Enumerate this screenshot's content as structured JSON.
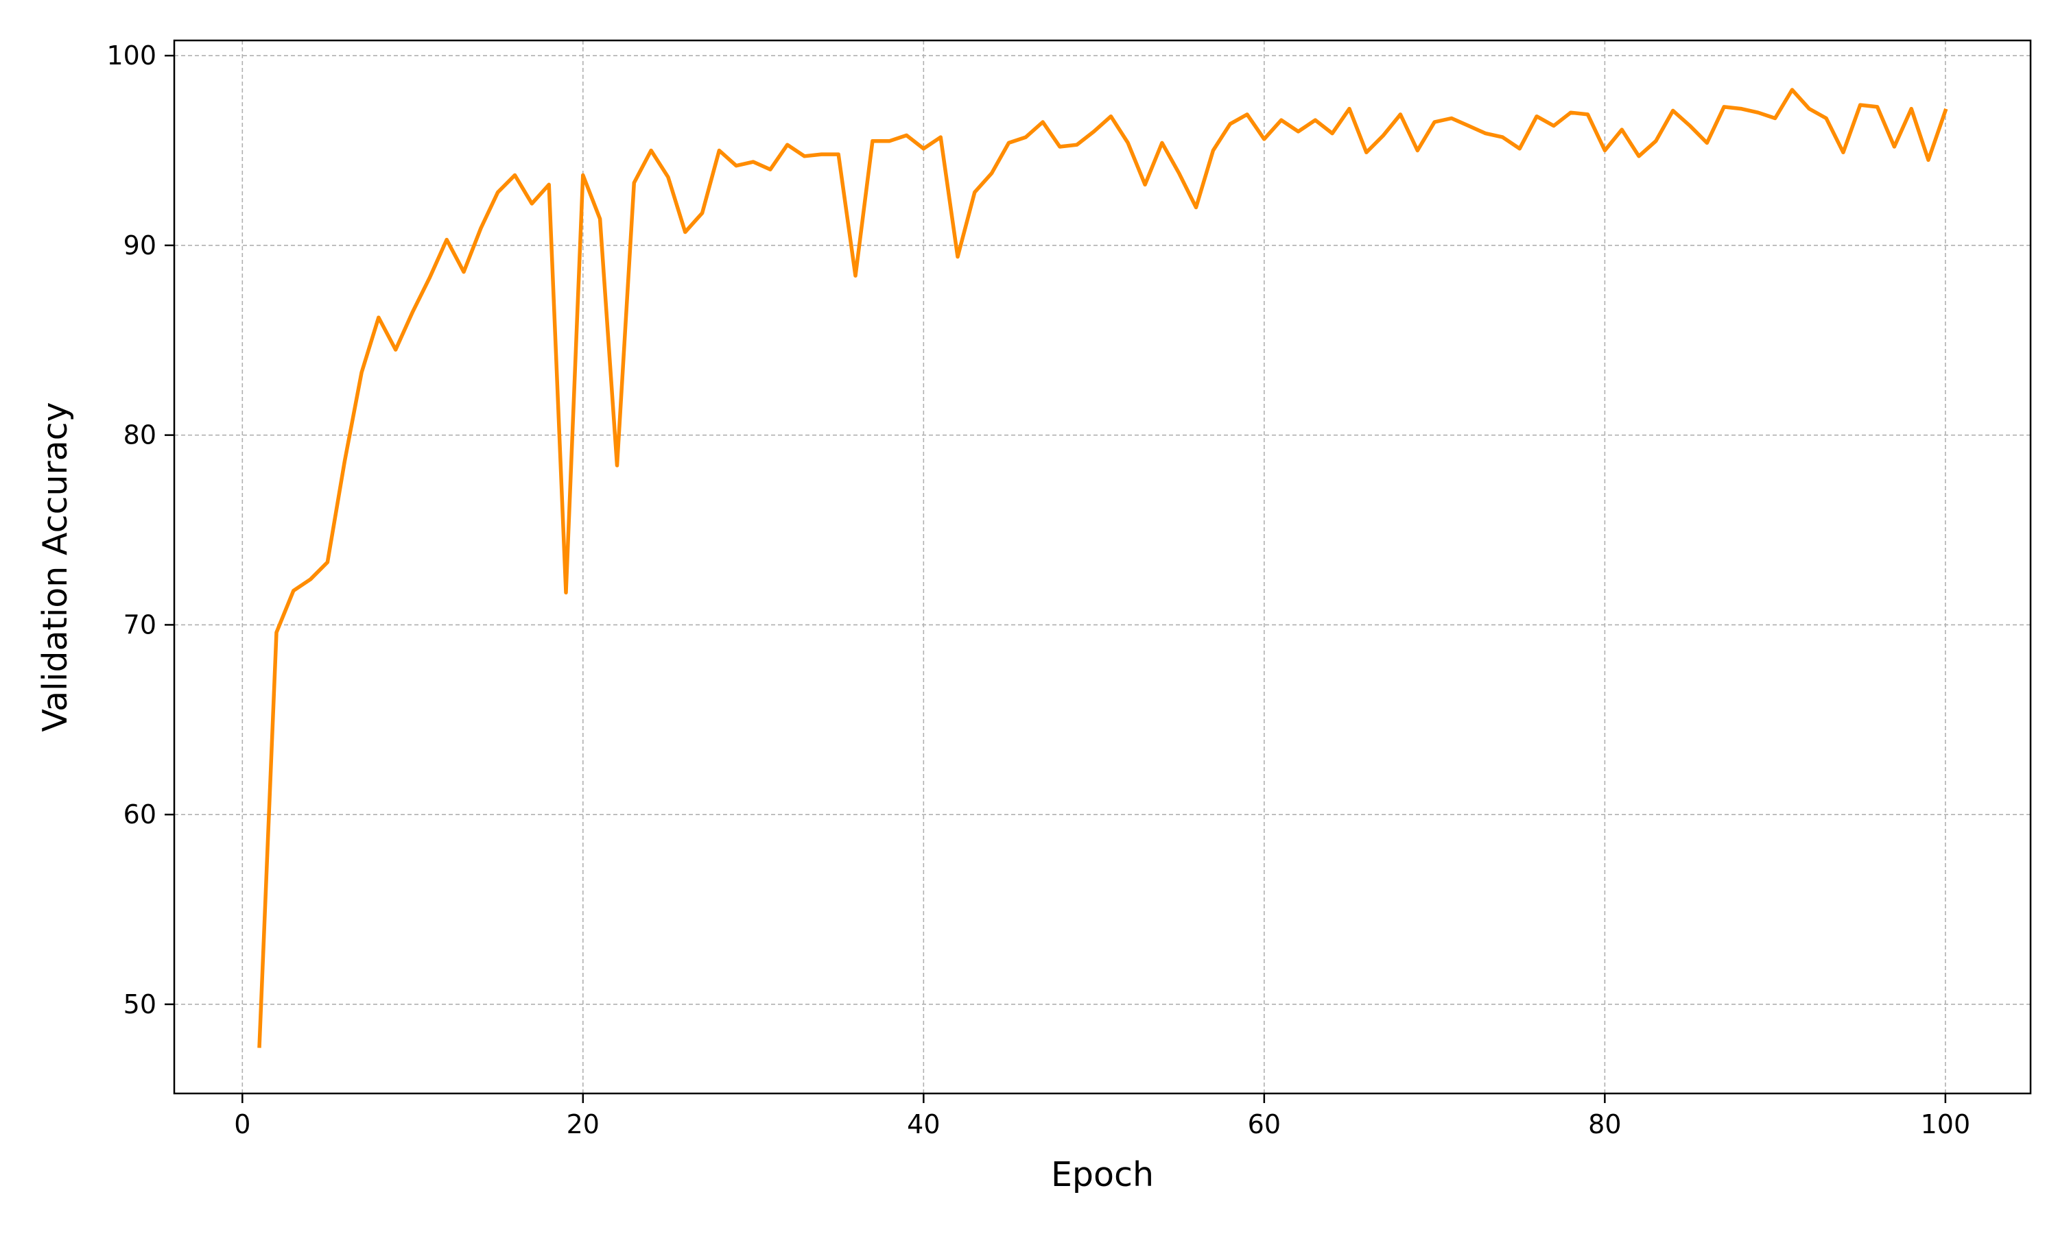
{
  "chart_data": {
    "type": "line",
    "title": "",
    "xlabel": "Epoch",
    "ylabel": "Validation Accuracy",
    "xlim": [
      -4,
      105
    ],
    "ylim": [
      45.3,
      100.8
    ],
    "xticks": [
      0,
      20,
      40,
      60,
      80,
      100
    ],
    "yticks": [
      50,
      60,
      70,
      80,
      90,
      100
    ],
    "xtick_labels": [
      "0",
      "20",
      "40",
      "60",
      "80",
      "100"
    ],
    "ytick_labels": [
      "50",
      "60",
      "70",
      "80",
      "90",
      "100"
    ],
    "grid": true,
    "legend": "none",
    "series": [
      {
        "color": "#ff8c00",
        "x": [
          1,
          2,
          3,
          4,
          5,
          6,
          7,
          8,
          9,
          10,
          11,
          12,
          13,
          14,
          15,
          16,
          17,
          18,
          19,
          20,
          21,
          22,
          23,
          24,
          25,
          26,
          27,
          28,
          29,
          30,
          31,
          32,
          33,
          34,
          35,
          36,
          37,
          38,
          39,
          40,
          41,
          42,
          43,
          44,
          45,
          46,
          47,
          48,
          49,
          50,
          51,
          52,
          53,
          54,
          55,
          56,
          57,
          58,
          59,
          60,
          61,
          62,
          63,
          64,
          65,
          66,
          67,
          68,
          69,
          70,
          71,
          72,
          73,
          74,
          75,
          76,
          77,
          78,
          79,
          80,
          81,
          82,
          83,
          84,
          85,
          86,
          87,
          88,
          89,
          90,
          91,
          92,
          93,
          94,
          95,
          96,
          97,
          98,
          99,
          100
        ],
        "values": [
          47.8,
          69.6,
          71.8,
          72.4,
          73.3,
          78.6,
          83.3,
          86.2,
          84.5,
          86.5,
          88.3,
          90.3,
          88.6,
          90.9,
          92.8,
          93.7,
          92.2,
          93.2,
          71.7,
          93.7,
          91.4,
          78.4,
          93.3,
          95.0,
          93.6,
          90.7,
          91.7,
          95.0,
          94.2,
          94.4,
          94.0,
          95.3,
          94.7,
          94.8,
          94.8,
          88.4,
          95.5,
          95.5,
          95.8,
          95.1,
          95.7,
          89.4,
          92.8,
          93.8,
          95.4,
          95.7,
          96.5,
          95.2,
          95.3,
          96.0,
          96.8,
          95.4,
          93.2,
          95.4,
          93.8,
          92.0,
          95.0,
          96.4,
          96.9,
          95.6,
          96.6,
          96.0,
          96.6,
          95.9,
          97.2,
          94.9,
          95.8,
          96.9,
          95.0,
          96.5,
          96.7,
          96.3,
          95.9,
          95.7,
          95.1,
          96.8,
          96.3,
          97.0,
          96.9,
          95.0,
          96.1,
          94.7,
          95.5,
          97.1,
          96.3,
          95.4,
          97.3,
          97.2,
          97.0,
          96.7,
          98.2,
          97.2,
          96.7,
          94.9,
          97.4,
          97.3,
          95.2,
          97.2,
          94.5,
          97.1
        ]
      }
    ]
  }
}
